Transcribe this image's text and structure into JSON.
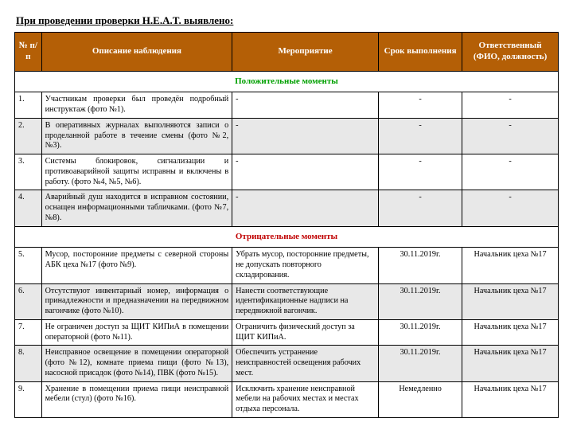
{
  "title": "При проведении проверки H.E.A.T. выявлено:",
  "header": {
    "bg": "#b45f06",
    "num": "№ п/п",
    "desc": "Описание наблюдения",
    "action": "Мероприятие",
    "date": "Срок выполнения",
    "resp": "Ответственный (ФИО, должность)"
  },
  "sections": {
    "positive": {
      "label": "Положительные моменты",
      "color": "#00a000"
    },
    "negative": {
      "label": "Отрицательные моменты",
      "color": "#c00000"
    }
  },
  "rows_positive": [
    {
      "n": "1.",
      "desc": "Участникам проверки был проведён подробный инструктаж (фото №1).",
      "action": "-",
      "date": "-",
      "resp": "-"
    },
    {
      "n": "2.",
      "desc": "В оперативных журналах выполняются записи о проделанной работе в течение смены (фото №2, №3).",
      "action": "-",
      "date": "-",
      "resp": "-"
    },
    {
      "n": "3.",
      "desc": "Системы блокировок, сигнализации и противоаварийной защиты исправны и включены в работу. (фото №4, №5, №6).",
      "action": "-",
      "date": "-",
      "resp": "-"
    },
    {
      "n": "4.",
      "desc": "Аварийный душ находится в исправном состоянии, оснащен информационными табличками. (фото №7, №8).",
      "action": "-",
      "date": "-",
      "resp": "-"
    }
  ],
  "rows_negative": [
    {
      "n": "5.",
      "desc": "Мусор, посторонние предметы с северной стороны АБК цеха №17 (фото №9).",
      "action": "Убрать мусор, посторонние предметы, не допускать повторного складирования.",
      "date": "30.11.2019г.",
      "resp": "Начальник цеха №17"
    },
    {
      "n": "6.",
      "desc": "Отсутствуют инвентарный номер, информация о принадлежности и предназначении на передвижном вагончике (фото №10).",
      "action": "Нанести соответствующие идентификационные надписи на передвижной вагончик.",
      "date": "30.11.2019г.",
      "resp": "Начальник цеха №17"
    },
    {
      "n": "7.",
      "desc": "Не ограничен доступ за ЩИТ КИПиА в помещении операторной (фото №11).",
      "action": "Ограничить физический доступ за ЩИТ КИПиА.",
      "date": "30.11.2019г.",
      "resp": "Начальник цеха №17"
    },
    {
      "n": "8.",
      "desc": "Неисправное освещение в помещении операторной (фото №12), комнате приема пищи (фото №13), насосной присадок (фото №14), ПВК (фото №15).",
      "action": "Обеспечить устранение неисправностей освещения рабочих мест.",
      "date": "30.11.2019г.",
      "resp": "Начальник цеха №17"
    },
    {
      "n": "9.",
      "desc": "Хранение в помещении приема пищи неисправной мебели (стул) (фото №16).",
      "action": "Исключить хранение неисправной мебели на рабочих местах и местах отдыха персонала.",
      "date": "Немедленно",
      "resp": "Начальник цеха №17"
    }
  ]
}
